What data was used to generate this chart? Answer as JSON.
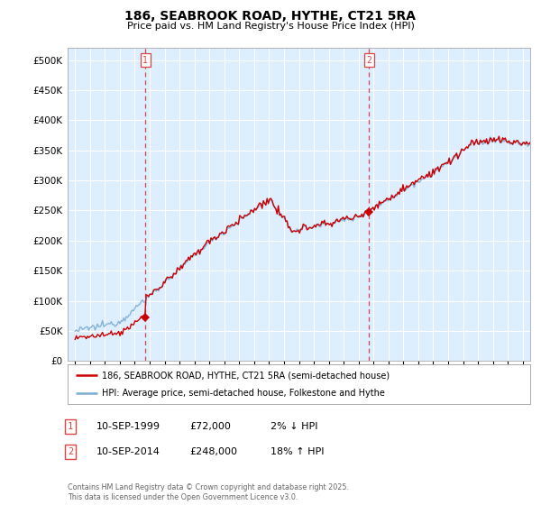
{
  "title": "186, SEABROOK ROAD, HYTHE, CT21 5RA",
  "subtitle": "Price paid vs. HM Land Registry's House Price Index (HPI)",
  "legend_line1": "186, SEABROOK ROAD, HYTHE, CT21 5RA (semi-detached house)",
  "legend_line2": "HPI: Average price, semi-detached house, Folkestone and Hythe",
  "annotation1_date": "10-SEP-1999",
  "annotation1_price": "£72,000",
  "annotation1_hpi": "2% ↓ HPI",
  "annotation2_date": "10-SEP-2014",
  "annotation2_price": "£248,000",
  "annotation2_hpi": "18% ↑ HPI",
  "footnote": "Contains HM Land Registry data © Crown copyright and database right 2025.\nThis data is licensed under the Open Government Licence v3.0.",
  "vline1_x": 1999.71,
  "vline2_x": 2014.71,
  "sale1_x": 1999.71,
  "sale1_y": 72000,
  "sale2_x": 2014.71,
  "sale2_y": 248000,
  "red_color": "#cc0000",
  "blue_color": "#7aadd4",
  "vline_color": "#dd4444",
  "chart_bg": "#ddeeff",
  "background_color": "#ffffff",
  "grid_color": "#ffffff",
  "ylim": [
    0,
    520000
  ],
  "xlim": [
    1994.5,
    2025.5
  ],
  "yticks": [
    0,
    50000,
    100000,
    150000,
    200000,
    250000,
    300000,
    350000,
    400000,
    450000,
    500000
  ],
  "xticks": [
    1995,
    1996,
    1997,
    1998,
    1999,
    2000,
    2001,
    2002,
    2003,
    2004,
    2005,
    2006,
    2007,
    2008,
    2009,
    2010,
    2011,
    2012,
    2013,
    2014,
    2015,
    2016,
    2017,
    2018,
    2019,
    2020,
    2021,
    2022,
    2023,
    2024,
    2025
  ]
}
